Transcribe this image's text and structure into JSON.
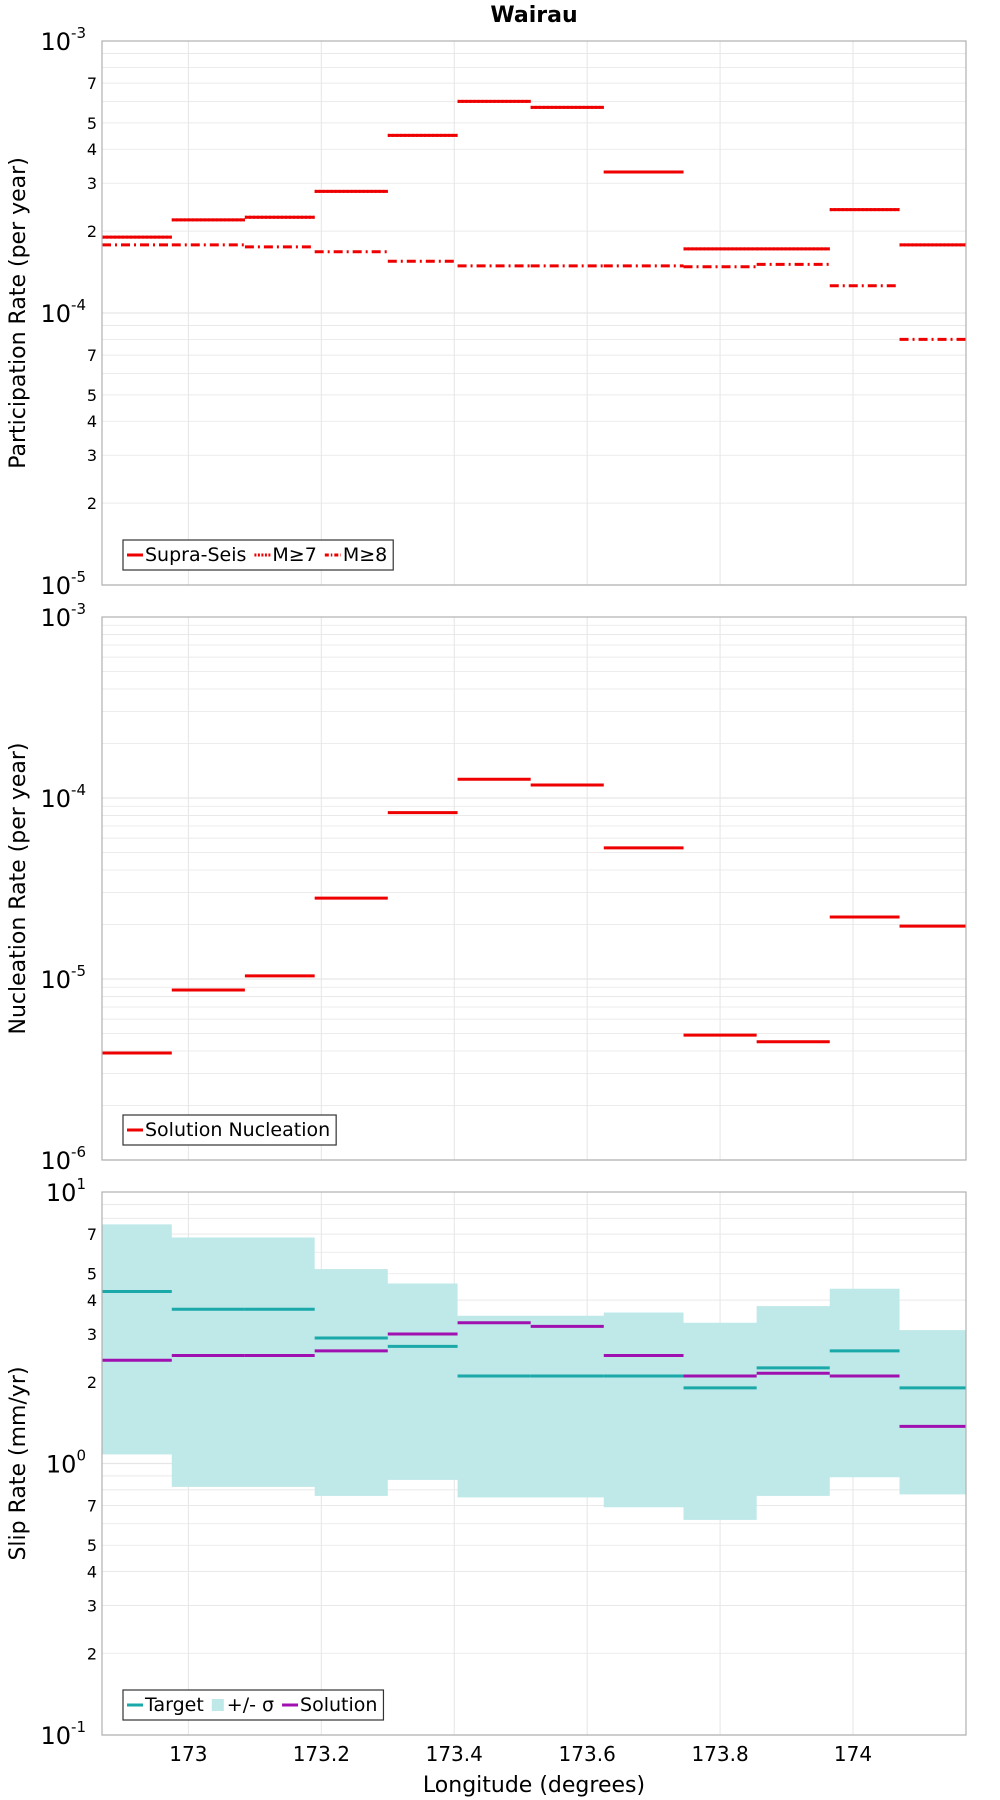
{
  "title": "Wairau",
  "xlabel": "Longitude (degrees)",
  "x_ticks": [
    "173",
    "173.2",
    "173.4",
    "173.6",
    "173.8",
    "174"
  ],
  "panel_ylabels": [
    "Participation Rate (per year)",
    "Nucleation Rate (per year)",
    "Slip Rate (mm/yr)"
  ],
  "colors": {
    "red": "#ee0000",
    "teal": "#1aa8a8",
    "band": "#bfe8e8",
    "purple": "#a010b0",
    "grid": "#e6e6e6"
  },
  "chart_data": [
    {
      "type": "line",
      "title": "Wairau",
      "ylabel": "Participation Rate (per year)",
      "xlabel": "",
      "yscale": "log",
      "xlim": [
        172.87,
        174.17
      ],
      "ylim": [
        1e-05,
        0.001
      ],
      "y_major_ticks": [
        {
          "base": "10",
          "exp": "-5"
        },
        {
          "base": "10",
          "exp": "-4"
        },
        {
          "base": "10",
          "exp": "-3"
        }
      ],
      "y_minor_labels": [
        "2",
        "3",
        "4",
        "5",
        "7"
      ],
      "grid": true,
      "legend_position": "bottom-left",
      "bins": [
        [
          172.87,
          172.975
        ],
        [
          172.975,
          173.085
        ],
        [
          173.085,
          173.19
        ],
        [
          173.19,
          173.3
        ],
        [
          173.3,
          173.405
        ],
        [
          173.405,
          173.515
        ],
        [
          173.515,
          173.625
        ],
        [
          173.625,
          173.745
        ],
        [
          173.745,
          173.855
        ],
        [
          173.855,
          173.965
        ],
        [
          173.965,
          174.07
        ],
        [
          174.07,
          174.17
        ]
      ],
      "series": [
        {
          "name": "Supra-Seis",
          "style": "solid",
          "values": [
            0.00019,
            0.00022,
            0.000225,
            0.00028,
            0.00045,
            0.0006,
            0.00057,
            0.00033,
            0.000172,
            0.000172,
            0.00024,
            0.000178
          ]
        },
        {
          "name": "M≥7",
          "style": "dotted",
          "values": [
            0.00019,
            0.00022,
            0.000225,
            0.00028,
            0.00045,
            0.0006,
            0.00057,
            0.00033,
            0.000172,
            0.000172,
            0.00024,
            0.000178
          ]
        },
        {
          "name": "M≥8",
          "style": "dashdot",
          "values": [
            0.000178,
            0.000178,
            0.000175,
            0.000168,
            0.000155,
            0.000149,
            0.000149,
            0.000149,
            0.000148,
            0.000151,
            0.000126,
            8e-05
          ]
        }
      ]
    },
    {
      "type": "line",
      "title": "",
      "ylabel": "Nucleation Rate (per year)",
      "xlabel": "",
      "yscale": "log",
      "xlim": [
        172.87,
        174.17
      ],
      "ylim": [
        1e-06,
        0.001
      ],
      "y_major_ticks": [
        {
          "base": "10",
          "exp": "-6"
        },
        {
          "base": "10",
          "exp": "-5"
        },
        {
          "base": "10",
          "exp": "-4"
        },
        {
          "base": "10",
          "exp": "-3"
        }
      ],
      "grid": true,
      "legend_position": "bottom-left",
      "bins": [
        [
          172.87,
          172.975
        ],
        [
          172.975,
          173.085
        ],
        [
          173.085,
          173.19
        ],
        [
          173.19,
          173.3
        ],
        [
          173.3,
          173.405
        ],
        [
          173.405,
          173.515
        ],
        [
          173.515,
          173.625
        ],
        [
          173.625,
          173.745
        ],
        [
          173.745,
          173.855
        ],
        [
          173.855,
          173.965
        ],
        [
          173.965,
          174.07
        ],
        [
          174.07,
          174.17
        ]
      ],
      "series": [
        {
          "name": "Solution Nucleation",
          "style": "solid",
          "values": [
            3.9e-06,
            8.7e-06,
            1.04e-05,
            2.8e-05,
            8.3e-05,
            0.000127,
            0.000118,
            5.3e-05,
            4.9e-06,
            4.5e-06,
            2.2e-05,
            1.96e-05
          ]
        }
      ]
    },
    {
      "type": "line",
      "title": "",
      "ylabel": "Slip Rate (mm/yr)",
      "xlabel": "Longitude (degrees)",
      "yscale": "log",
      "xlim": [
        172.87,
        174.17
      ],
      "ylim": [
        0.1,
        10
      ],
      "y_major_ticks": [
        {
          "base": "10",
          "exp": "-1"
        },
        {
          "base": "10",
          "exp": "0"
        },
        {
          "base": "10",
          "exp": "1"
        }
      ],
      "y_minor_labels": [
        "2",
        "3",
        "4",
        "5",
        "7"
      ],
      "grid": true,
      "legend_position": "bottom-left",
      "bins": [
        [
          172.87,
          172.975
        ],
        [
          172.975,
          173.085
        ],
        [
          173.085,
          173.19
        ],
        [
          173.19,
          173.3
        ],
        [
          173.3,
          173.405
        ],
        [
          173.405,
          173.515
        ],
        [
          173.515,
          173.625
        ],
        [
          173.625,
          173.745
        ],
        [
          173.745,
          173.855
        ],
        [
          173.855,
          173.965
        ],
        [
          173.965,
          174.07
        ],
        [
          174.07,
          174.17
        ]
      ],
      "band_name": "+/- σ",
      "band_upper": [
        7.6,
        6.8,
        6.8,
        5.2,
        4.6,
        3.5,
        3.5,
        3.6,
        3.3,
        3.8,
        4.4,
        3.1
      ],
      "band_lower": [
        1.08,
        0.82,
        0.82,
        0.76,
        0.87,
        0.75,
        0.75,
        0.69,
        0.62,
        0.76,
        0.89,
        0.77
      ],
      "series": [
        {
          "name": "Target",
          "style": "solid",
          "values": [
            4.3,
            3.7,
            3.7,
            2.9,
            2.7,
            2.1,
            2.1,
            2.1,
            1.9,
            2.25,
            2.6,
            1.9
          ]
        },
        {
          "name": "Solution",
          "style": "solid",
          "values": [
            2.4,
            2.5,
            2.5,
            2.6,
            3.0,
            3.3,
            3.2,
            2.5,
            2.1,
            2.15,
            2.1,
            1.37
          ]
        }
      ]
    }
  ]
}
